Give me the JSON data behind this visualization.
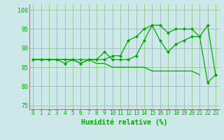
{
  "xlabel": "Humidité relative (%)",
  "background_color": "#cce8e8",
  "grid_color": "#99cc99",
  "line_color": "#00aa00",
  "xlim": [
    -0.5,
    23.5
  ],
  "ylim": [
    74,
    101.5
  ],
  "yticks": [
    75,
    80,
    85,
    90,
    95,
    100
  ],
  "xticks": [
    0,
    1,
    2,
    3,
    4,
    5,
    6,
    7,
    8,
    9,
    10,
    11,
    12,
    13,
    14,
    15,
    16,
    17,
    18,
    19,
    20,
    21,
    22,
    23
  ],
  "line1_x": [
    0,
    1,
    2,
    3,
    4,
    5,
    6,
    7,
    8,
    9,
    10,
    11,
    12,
    13,
    14,
    15,
    16,
    17,
    18,
    19,
    20,
    21,
    22,
    23
  ],
  "line1_y": [
    87,
    87,
    87,
    87,
    87,
    87,
    87,
    87,
    87,
    87,
    88,
    88,
    92,
    93,
    95,
    96,
    96,
    94,
    95,
    95,
    95,
    93,
    96,
    83
  ],
  "line2_x": [
    0,
    1,
    2,
    3,
    4,
    5,
    6,
    7,
    8,
    9,
    10,
    11,
    12,
    13,
    14,
    15,
    16,
    17,
    18,
    19,
    20,
    21,
    22,
    23
  ],
  "line2_y": [
    87,
    87,
    87,
    87,
    86,
    87,
    86,
    87,
    87,
    89,
    87,
    87,
    87,
    88,
    92,
    96,
    92,
    89,
    91,
    92,
    93,
    93,
    81,
    83
  ],
  "line3_x": [
    0,
    1,
    2,
    3,
    4,
    5,
    6,
    7,
    8,
    9,
    10,
    11,
    12,
    13,
    14,
    15,
    16,
    17,
    18,
    19,
    20,
    21
  ],
  "line3_y": [
    87,
    87,
    87,
    87,
    87,
    87,
    86,
    87,
    86,
    86,
    85,
    85,
    85,
    85,
    85,
    84,
    84,
    84,
    84,
    84,
    84,
    83
  ]
}
